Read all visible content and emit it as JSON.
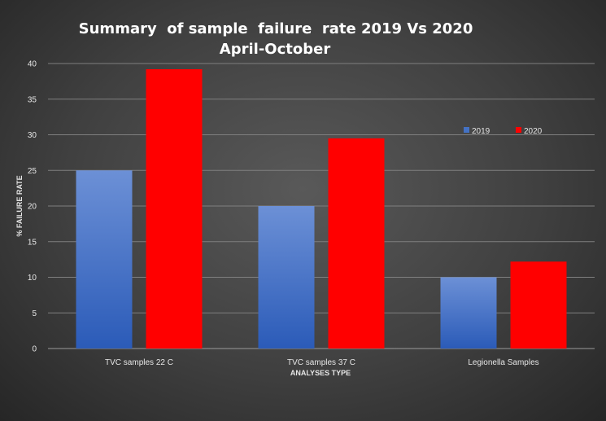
{
  "chart_data": {
    "type": "bar",
    "title": "Summary  of sample  failure  rate 2019 Vs 2020",
    "subtitle": "April-October",
    "xlabel": "ANALYSES TYPE",
    "ylabel": "% FAILURE RATE",
    "categories": [
      "TVC samples 22 C",
      "TVC samples 37 C",
      "Legionella Samples"
    ],
    "series": [
      {
        "name": "2019",
        "values": [
          25,
          20,
          10
        ],
        "color": "#4472c4"
      },
      {
        "name": "2020",
        "values": [
          39.2,
          29.5,
          12.2
        ],
        "color": "#ff0000"
      }
    ],
    "ylim": [
      0,
      40
    ],
    "yticks": [
      "0",
      "5",
      "10",
      "15",
      "20",
      "25",
      "30",
      "35",
      "40"
    ],
    "grid": true,
    "legend_position": "top-right"
  }
}
